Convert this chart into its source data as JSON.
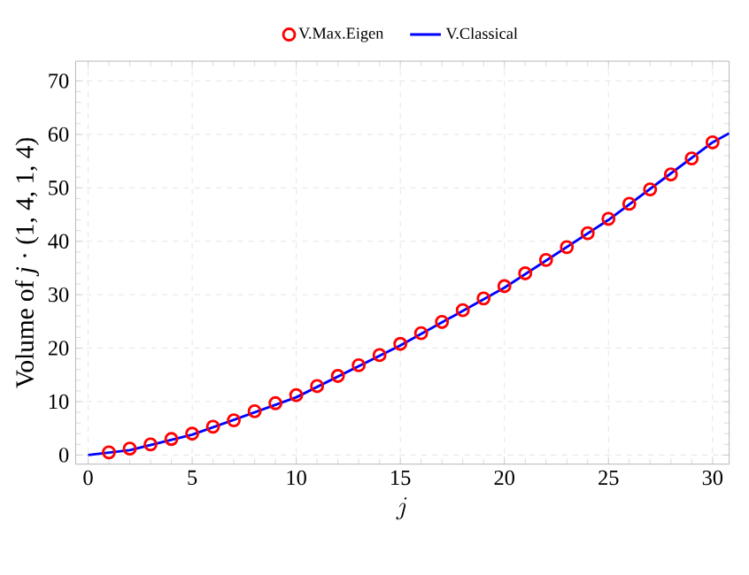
{
  "chart_data": {
    "type": "line",
    "xlabel": "j",
    "ylabel": "Volume of *j* · (1, 4, 1, 4)",
    "xlim": [
      -0.6,
      30.8
    ],
    "ylim": [
      -1.7,
      73.7
    ],
    "xticks": [
      0,
      5,
      10,
      15,
      20,
      25,
      30
    ],
    "yticks": [
      0,
      10,
      20,
      30,
      40,
      50,
      60,
      70
    ],
    "grid": true,
    "legend": "top",
    "series": [
      {
        "name": "V.Max.Eigen",
        "type": "scatter",
        "marker": "circle",
        "color": "#ff0000",
        "x": [
          1,
          2,
          3,
          4,
          5,
          6,
          7,
          8,
          9,
          10,
          11,
          12,
          13,
          14,
          15,
          16,
          17,
          18,
          19,
          20,
          21,
          22,
          23,
          24,
          25,
          26,
          27,
          28,
          29,
          30
        ],
        "values": [
          0.5,
          1.2,
          2,
          3,
          4,
          5.3,
          6.5,
          8.2,
          9.7,
          11.2,
          12.9,
          14.8,
          16.8,
          18.7,
          20.8,
          22.8,
          24.9,
          27.1,
          29.3,
          31.6,
          34,
          36.5,
          38.9,
          41.5,
          44.2,
          47,
          49.7,
          52.5,
          55.5,
          58.5
        ]
      },
      {
        "name": "V.Classical",
        "line_style": "solid",
        "color": "#0000ff",
        "x": [
          0,
          2,
          5,
          10,
          15,
          20,
          25,
          30,
          30.8
        ],
        "values": [
          0,
          0.9,
          3.8,
          10.8,
          20.5,
          31.3,
          44,
          58.5,
          60.2
        ]
      }
    ]
  }
}
